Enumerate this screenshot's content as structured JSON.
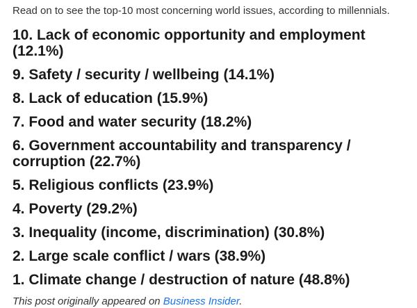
{
  "intro": "Read on to see the top-10 most concerning world issues, according to millennials.",
  "issues": [
    "10. Lack of economic opportunity and employment (12.1%)",
    "9. Safety / security / wellbeing (14.1%)",
    "8. Lack of education (15.9%)",
    "7. Food and water security (18.2%)",
    "6. Government accountability and transparency / corruption (22.7%)",
    "5. Religious conflicts (23.9%)",
    "4. Poverty (29.2%)",
    "3. Inequality (income, discrimination) (30.8%)",
    "2. Large scale conflict / wars (38.9%)",
    "1. Climate change / destruction of nature (48.8%)"
  ],
  "footer": {
    "prefix": "This post originally appeared on ",
    "link_text": "Business Insider",
    "suffix": "."
  },
  "colors": {
    "link": "#1a73e8",
    "text": "#1a1a1a"
  }
}
